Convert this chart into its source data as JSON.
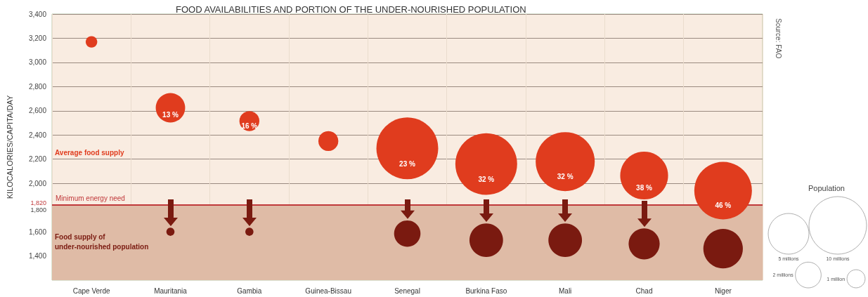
{
  "chart_data": {
    "type": "bubble",
    "title": "FOOD AVAILABILITIES AND PORTION OF THE UNDER-NOURISHED POPULATION",
    "ylabel": "KILOCALORIES/CAPITA/DAY",
    "legend_title": "Population",
    "annotations": [
      "Source: FAO",
      {
        "text": "13 %",
        "x": "Mauritania",
        "y": 2625
      },
      {
        "text": "16 %",
        "x": "Gambia",
        "y": 2515
      },
      {
        "text": "23 %",
        "x": "Senegal",
        "y": 2290
      },
      {
        "text": "32 %",
        "x": "Burkina Faso",
        "y": 2160
      },
      {
        "text": "32 %",
        "x": "Mali",
        "y": 2180
      },
      {
        "text": "38 %",
        "x": "Chad",
        "y": 2065
      },
      {
        "text": "46 %",
        "x": "Niger",
        "y": 1940
      }
    ],
    "categories": [
      "Cape Verde",
      "Mauritania",
      "Gambia",
      "Guinea-Bissau",
      "Senegal",
      "Burkina Faso",
      "Mali",
      "Chad",
      "Niger"
    ],
    "series": [
      {
        "name": "Average food supply",
        "color": "#e03c1e",
        "values": [
          3170,
          2625,
          2515,
          2350,
          2290,
          2160,
          2180,
          2065,
          1940
        ],
        "sizes": [
          0.4,
          2.6,
          1.2,
          1.2,
          11.5,
          11.5,
          10.5,
          6.9,
          10
        ]
      },
      {
        "name": "Food supply of under-nourished population",
        "color": "#7a1a10",
        "values": [
          null,
          1600,
          1600,
          null,
          1585,
          1530,
          1530,
          1500,
          1460
        ],
        "sizes": [
          null,
          0.2,
          0.2,
          null,
          2.1,
          3.4,
          3.4,
          2.9,
          4.7
        ]
      }
    ],
    "size_legend": [
      {
        "value": 10,
        "label": "10 millions"
      },
      {
        "value": 5,
        "label": "5 millions"
      },
      {
        "value": 2,
        "label": "2 millions"
      },
      {
        "value": 1,
        "label": "1 million"
      }
    ],
    "ylim": [
      1200,
      3400
    ],
    "yticks": [
      {
        "value": 1400,
        "label": "1,400"
      },
      {
        "value": 1600,
        "label": "1,600"
      },
      {
        "value": 1800,
        "label": "1,800"
      },
      {
        "value": 1820,
        "label": "1,820"
      },
      {
        "value": 2000,
        "label": "2,000"
      },
      {
        "value": 2200,
        "label": "2,200"
      },
      {
        "value": 2400,
        "label": "2,400"
      },
      {
        "value": 2600,
        "label": "2,600"
      },
      {
        "value": 2800,
        "label": "2,800"
      },
      {
        "value": 3000,
        "label": "3,000"
      },
      {
        "value": 3200,
        "label": "3,200"
      },
      {
        "value": 3400,
        "label": "3,400"
      }
    ],
    "grid": true,
    "ref_lines": [
      {
        "axis": "y",
        "value": 1820,
        "label": "Minimum energy need",
        "color": "#c0393b"
      }
    ],
    "bands": [
      {
        "axis": "y",
        "from": 1200,
        "to": 1820,
        "color": "#dfbba6"
      }
    ]
  }
}
